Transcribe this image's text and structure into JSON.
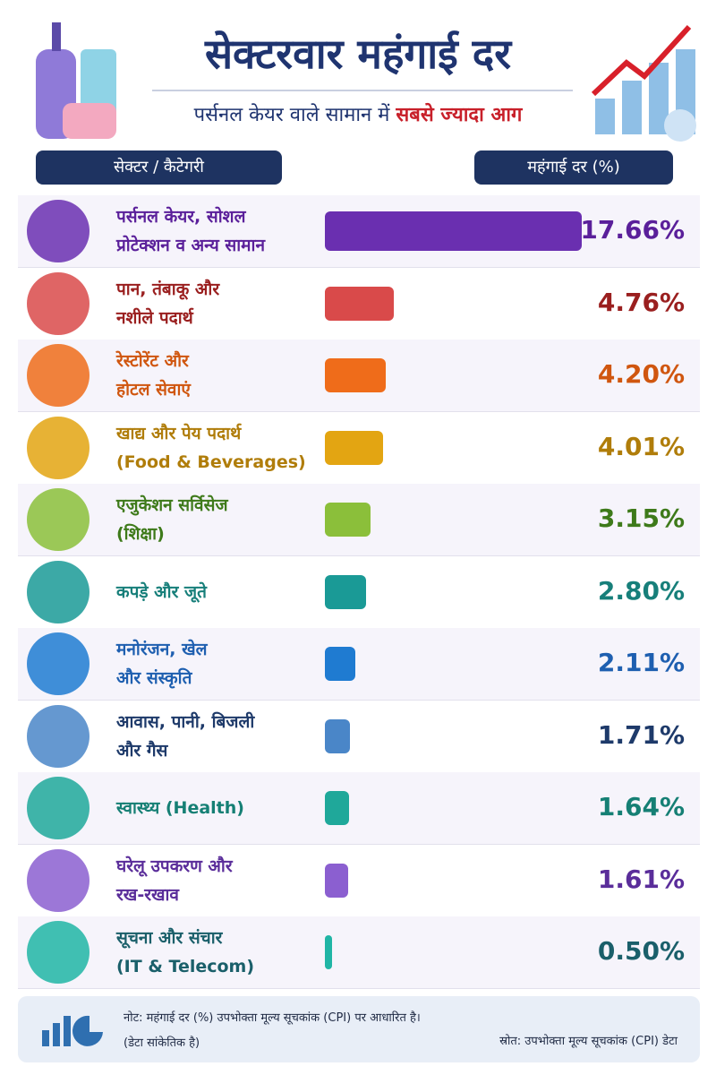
{
  "chart_data": {
    "type": "bar",
    "orientation": "horizontal",
    "title": "सेक्टरवार महंगाई दर",
    "subtitle": "पर्सनल केयर वाले सामान में",
    "subtitle_highlight": "सबसे ज्यादा आग",
    "category_header": "सेक्टर / कैटेगरी",
    "value_header": "महंगाई दर (%)",
    "categories": [
      "पर्सनल केयर, सोशल\nप्रोटेक्शन व अन्य सामान",
      "पान, तंबाकू और\nनशीले पदार्थ",
      "रेस्टोरेंट और\nहोटल सेवाएं",
      "खाद्य और पेय पदार्थ\n(Food & Beverages)",
      "एजुकेशन सर्विसेज\n(शिक्षा)",
      "कपड़े और जूते",
      "मनोरंजन, खेल\nऔर संस्कृति",
      "आवास, पानी, बिजली\nऔर गैस",
      "स्वास्थ्य (Health)",
      "घरेलू उपकरण और\nरख-रखाव",
      "सूचना और संचार\n(IT & Telecom)"
    ],
    "values": [
      17.66,
      4.76,
      4.2,
      4.01,
      3.15,
      2.8,
      2.11,
      1.71,
      1.64,
      1.61,
      0.5
    ],
    "value_labels": [
      "17.66%",
      "4.76%",
      "4.20%",
      "4.01%",
      "3.15%",
      "2.80%",
      "2.11%",
      "1.71%",
      "1.64%",
      "1.61%",
      "0.50%"
    ],
    "colors": [
      "#6a2fb0",
      "#d94a4a",
      "#ef6c1a",
      "#e3a512",
      "#8bbf3a",
      "#1a9a96",
      "#1f7bd1",
      "#4a86c8",
      "#1fa89a",
      "#8b5fd0",
      "#20b5a5"
    ],
    "label_colors": [
      "#5a1f9a",
      "#9a1f1f",
      "#d0560f",
      "#b07d0a",
      "#3e7a1a",
      "#177f7a",
      "#1e5fb0",
      "#1e3a6a",
      "#157f74",
      "#5a2d9a",
      "#1a5f6a"
    ],
    "note": "नोट: महंगाई दर (%) उपभोक्ता मूल्य सूचकांक (CPI) पर आधारित है।",
    "note_sub": "(डेटा सांकेतिक है)",
    "source": "स्रोत: उपभोक्ता मूल्य सूचकांक (CPI) डेटा"
  }
}
